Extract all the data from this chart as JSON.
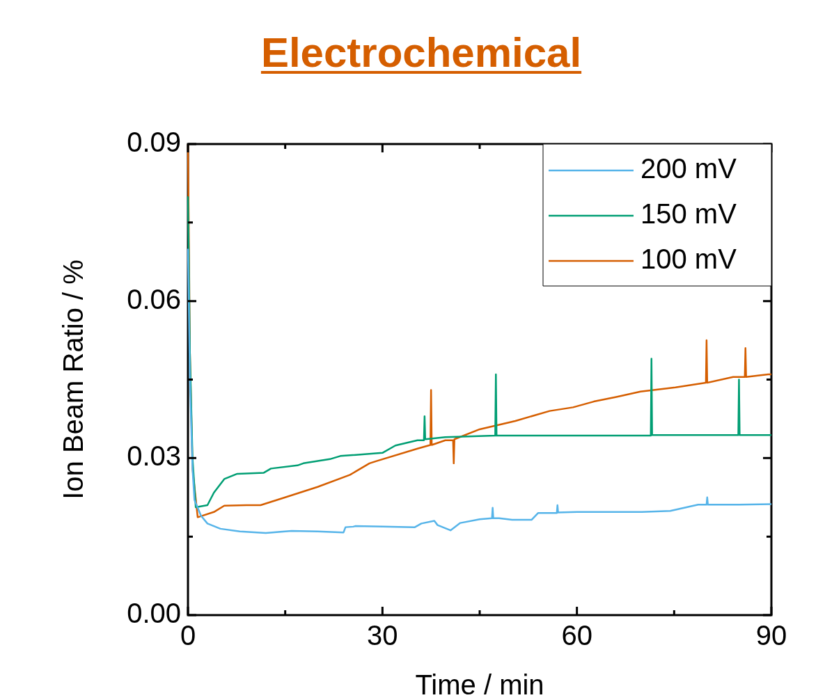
{
  "chart_data": {
    "type": "line",
    "title": "Electrochemical",
    "xlabel": "Time / min",
    "ylabel": "Ion Beam Ratio / %",
    "xlim": [
      0,
      90
    ],
    "ylim": [
      0,
      0.09
    ],
    "xticks": [
      0,
      {
        "value": 15,
        "label": null
      },
      30,
      {
        "value": 45,
        "label": null
      },
      60,
      {
        "value": 75,
        "label": null
      },
      90
    ],
    "yticks": [
      {
        "value": 0,
        "label": "0.00"
      },
      {
        "value": 0.015,
        "label": null
      },
      0.03,
      {
        "value": 0.045,
        "label": null
      },
      0.06,
      {
        "value": 0.075,
        "label": null
      },
      0.09
    ],
    "legend": "top right",
    "grid": false,
    "marker": "none",
    "line_style": "solid",
    "series": [
      {
        "name": "200 mV",
        "color": "#56b4e9",
        "x": [
          0,
          0.3,
          0.7,
          1,
          2,
          3,
          5,
          8,
          12,
          16,
          20,
          24,
          24.3,
          25.5,
          25.8,
          30,
          35,
          36,
          38,
          38.5,
          40.5,
          42,
          45,
          46.9,
          47,
          47.1,
          48,
          50,
          53,
          54,
          56.9,
          57,
          57.1,
          60,
          70,
          74.4,
          78.7,
          80,
          80.1,
          80.2,
          85,
          90
        ],
        "values": [
          0.07,
          0.045,
          0.028,
          0.022,
          0.019,
          0.0175,
          0.0165,
          0.016,
          0.0157,
          0.0161,
          0.016,
          0.0158,
          0.0168,
          0.0169,
          0.017,
          0.0169,
          0.0168,
          0.0175,
          0.018,
          0.0172,
          0.0162,
          0.0176,
          0.0183,
          0.0185,
          0.0205,
          0.0185,
          0.0185,
          0.0182,
          0.0182,
          0.0195,
          0.0195,
          0.021,
          0.0196,
          0.0197,
          0.0197,
          0.0199,
          0.0211,
          0.0211,
          0.0225,
          0.0211,
          0.0211,
          0.0212
        ]
      },
      {
        "name": "150 mV",
        "color": "#009e73",
        "x": [
          0,
          0.3,
          0.7,
          1.2,
          3,
          4,
          5.6,
          7.6,
          11.7,
          12.8,
          16.9,
          17.8,
          21.9,
          23.5,
          30,
          32,
          35.4,
          36.4,
          36.5,
          36.6,
          39.7,
          47.4,
          47.5,
          47.6,
          55,
          60,
          65,
          71.4,
          71.5,
          71.6,
          78,
          84.9,
          85,
          85.1,
          90
        ],
        "values": [
          0.08,
          0.05,
          0.03,
          0.0206,
          0.021,
          0.0234,
          0.026,
          0.027,
          0.0272,
          0.028,
          0.0286,
          0.029,
          0.0298,
          0.0304,
          0.031,
          0.0324,
          0.0334,
          0.0334,
          0.038,
          0.0336,
          0.034,
          0.0343,
          0.046,
          0.0343,
          0.0343,
          0.0343,
          0.0343,
          0.0343,
          0.049,
          0.0344,
          0.0344,
          0.0344,
          0.045,
          0.0344,
          0.0344
        ]
      },
      {
        "name": "100 mV",
        "color": "#d55e00",
        "x": [
          0,
          0.3,
          0.7,
          1.5,
          4,
          5.6,
          9,
          11.2,
          15,
          20,
          25,
          28,
          29,
          35.4,
          37.4,
          37.5,
          37.6,
          39.7,
          40.9,
          41,
          41.1,
          45,
          50.5,
          55.8,
          59.4,
          62.6,
          66.2,
          69.8,
          75.2,
          79.9,
          80,
          80.1,
          84.1,
          85.9,
          86,
          86.1,
          89.5,
          90
        ],
        "values": [
          0.09,
          0.05,
          0.028,
          0.0187,
          0.0197,
          0.0209,
          0.021,
          0.021,
          0.0225,
          0.0245,
          0.0268,
          0.029,
          0.0294,
          0.0318,
          0.0325,
          0.043,
          0.0325,
          0.0334,
          0.0334,
          0.029,
          0.0336,
          0.0355,
          0.0371,
          0.039,
          0.0397,
          0.0408,
          0.0417,
          0.0427,
          0.0435,
          0.0444,
          0.0525,
          0.0444,
          0.0455,
          0.0455,
          0.051,
          0.0455,
          0.046,
          0.046
        ]
      }
    ]
  }
}
